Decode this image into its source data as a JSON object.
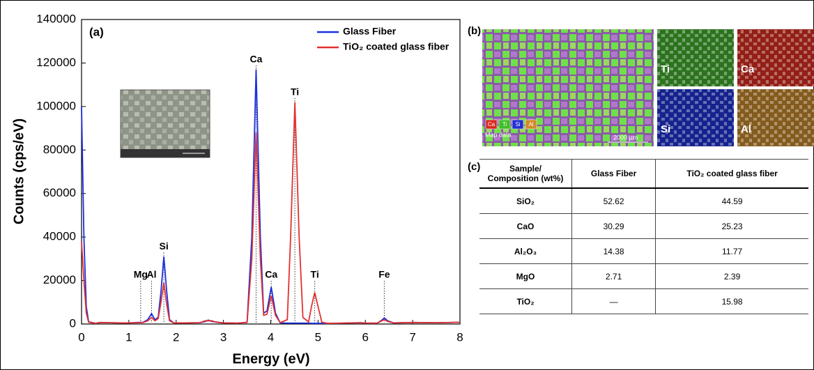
{
  "chart_data": {
    "type": "line",
    "panel_label": "(a)",
    "xlabel": "Energy (eV)",
    "ylabel": "Counts (cps/eV)",
    "x": [
      0,
      0.05,
      0.1,
      0.15,
      0.3,
      0.4,
      0.6,
      0.8,
      1.0,
      1.2,
      1.25,
      1.3,
      1.4,
      1.48,
      1.55,
      1.62,
      1.68,
      1.74,
      1.8,
      1.86,
      1.95,
      2.2,
      2.5,
      2.62,
      2.68,
      2.75,
      2.85,
      3.0,
      3.3,
      3.5,
      3.6,
      3.69,
      3.78,
      3.85,
      3.92,
      4.01,
      4.1,
      4.2,
      4.35,
      4.42,
      4.51,
      4.6,
      4.68,
      4.8,
      4.86,
      4.93,
      5.0,
      5.08,
      5.2,
      5.5,
      5.9,
      6.0,
      6.25,
      6.35,
      6.4,
      6.47,
      6.6,
      7.0,
      7.5,
      8.0
    ],
    "series": [
      {
        "name": "Glass Fiber",
        "color": "#1a2fe0",
        "values": [
          100000,
          40000,
          8000,
          1000,
          300,
          700,
          600,
          500,
          500,
          700,
          750,
          800,
          2000,
          4800,
          2000,
          3000,
          15000,
          31000,
          15000,
          2000,
          500,
          500,
          600,
          1200,
          1800,
          1200,
          900,
          500,
          400,
          800,
          40000,
          117000,
          40000,
          5000,
          6000,
          17000,
          5000,
          500,
          400,
          400,
          400,
          400,
          400,
          400,
          300,
          300,
          300,
          300,
          300,
          400,
          600,
          400,
          400,
          1800,
          2800,
          1500,
          500,
          700,
          600,
          800
        ]
      },
      {
        "name": "TiO₂ coated glass fiber",
        "color": "#e3302f",
        "values": [
          38000,
          20000,
          5000,
          800,
          300,
          700,
          600,
          500,
          500,
          600,
          650,
          700,
          1500,
          3000,
          1500,
          2500,
          10000,
          19000,
          9000,
          1500,
          500,
          500,
          600,
          1500,
          1500,
          1500,
          800,
          500,
          400,
          700,
          30000,
          88000,
          30000,
          4000,
          4500,
          13000,
          4000,
          600,
          2000,
          40000,
          102000,
          40000,
          3000,
          1000,
          8000,
          14500,
          8000,
          800,
          300,
          400,
          600,
          400,
          400,
          1500,
          2000,
          1200,
          500,
          700,
          600,
          800
        ]
      }
    ],
    "annotations": [
      {
        "text": "Mg",
        "x": 1.25
      },
      {
        "text": "Al",
        "x": 1.48
      },
      {
        "text": "Si",
        "x": 1.74
      },
      {
        "text": "Ca",
        "x": 3.69
      },
      {
        "text": "Ca",
        "x": 4.01
      },
      {
        "text": "Ti",
        "x": 4.51
      },
      {
        "text": "Ti",
        "x": 4.93
      },
      {
        "text": "Fe",
        "x": 6.4
      }
    ],
    "xlim": [
      0,
      8
    ],
    "xticks": [
      0,
      1,
      2,
      3,
      4,
      5,
      6,
      7,
      8
    ],
    "ylim": [
      0,
      140000
    ],
    "yticks": [
      0,
      20000,
      40000,
      60000,
      80000,
      100000,
      120000,
      140000
    ],
    "legend": "upper right"
  },
  "eds_maps": {
    "panel_label": "(b)",
    "overlay": {
      "chips": [
        {
          "element": "Ca",
          "color": "#d62a1f"
        },
        {
          "element": "Ti",
          "color": "#3fbf2a"
        },
        {
          "element": "Si",
          "color": "#2430d0"
        },
        {
          "element": "Al",
          "color": "#d08a2a"
        }
      ],
      "note": "Map data",
      "scale": "2000 µm"
    },
    "tiles": [
      {
        "element": "Ti",
        "color": "#3c9a2a"
      },
      {
        "element": "Ca",
        "color": "#c42a1e"
      },
      {
        "element": "Si",
        "color": "#1d2fbe"
      },
      {
        "element": "Al",
        "color": "#b07a28"
      }
    ]
  },
  "table": {
    "panel_label": "(c)",
    "header": [
      "Sample/ Composition (wt%)",
      "Glass Fiber",
      "TiO₂ coated glass fiber"
    ],
    "rows": [
      [
        "SiO₂",
        "52.62",
        "44.59"
      ],
      [
        "CaO",
        "30.29",
        "25.23"
      ],
      [
        "Al₂O₃",
        "14.38",
        "11.77"
      ],
      [
        "MgO",
        "2.71",
        "2.39"
      ],
      [
        "TiO₂",
        "—",
        "15.98"
      ]
    ]
  }
}
